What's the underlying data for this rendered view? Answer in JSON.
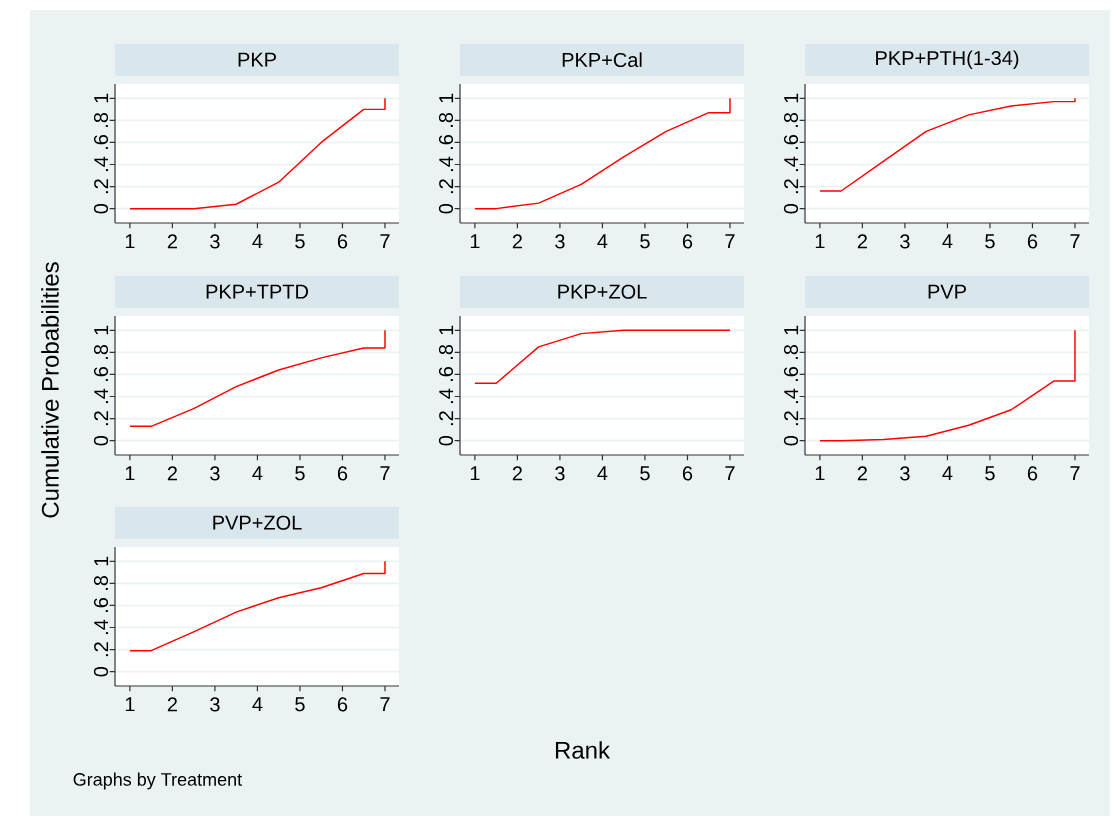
{
  "chart_data": [
    {
      "type": "line",
      "title": "PKP",
      "color": "#ff0000",
      "grid": "y",
      "xlim": [
        0.65,
        7.33
      ],
      "ylim": [
        -0.13,
        1.13
      ],
      "xticks": [
        1,
        2,
        3,
        4,
        5,
        6,
        7
      ],
      "yticks": [
        0,
        {
          "value": 0.2,
          "label": ".2"
        },
        {
          "value": 0.4,
          "label": ".4"
        },
        {
          "value": 0.6,
          "label": ".6"
        },
        {
          "value": 0.8,
          "label": ".8"
        },
        1
      ],
      "x": [
        1,
        1.5,
        2.5,
        3.5,
        4.5,
        5.5,
        6.5,
        7,
        7
      ],
      "values": [
        0,
        0,
        0,
        0.04,
        0.24,
        0.6,
        0.9,
        0.9,
        1
      ]
    },
    {
      "type": "line",
      "title": "PKP+Cal",
      "color": "#ff0000",
      "grid": "y",
      "xlim": [
        0.65,
        7.33
      ],
      "ylim": [
        -0.13,
        1.13
      ],
      "xticks": [
        1,
        2,
        3,
        4,
        5,
        6,
        7
      ],
      "yticks": [
        0,
        {
          "value": 0.2,
          "label": ".2"
        },
        {
          "value": 0.4,
          "label": ".4"
        },
        {
          "value": 0.6,
          "label": ".6"
        },
        {
          "value": 0.8,
          "label": ".8"
        },
        1
      ],
      "x": [
        1,
        1.5,
        2.5,
        3.5,
        4.5,
        5.5,
        6.5,
        7,
        7
      ],
      "values": [
        0,
        0,
        0.05,
        0.22,
        0.47,
        0.7,
        0.87,
        0.87,
        1
      ]
    },
    {
      "type": "line",
      "title": "PKP+PTH(1-34)",
      "color": "#ff0000",
      "grid": "y",
      "xlim": [
        0.65,
        7.33
      ],
      "ylim": [
        -0.13,
        1.13
      ],
      "xticks": [
        1,
        2,
        3,
        4,
        5,
        6,
        7
      ],
      "yticks": [
        0,
        {
          "value": 0.2,
          "label": ".2"
        },
        {
          "value": 0.4,
          "label": ".4"
        },
        {
          "value": 0.6,
          "label": ".6"
        },
        {
          "value": 0.8,
          "label": ".8"
        },
        1
      ],
      "x": [
        1,
        1.5,
        2.5,
        3.5,
        4.5,
        5.5,
        6.5,
        7,
        7
      ],
      "values": [
        0.16,
        0.16,
        0.43,
        0.7,
        0.85,
        0.93,
        0.97,
        0.97,
        1
      ]
    },
    {
      "type": "line",
      "title": "PKP+TPTD",
      "ylabel": "Cumulative Probabilities",
      "color": "#ff0000",
      "grid": "y",
      "xlim": [
        0.65,
        7.33
      ],
      "ylim": [
        -0.13,
        1.13
      ],
      "xticks": [
        1,
        2,
        3,
        4,
        5,
        6,
        7
      ],
      "yticks": [
        0,
        {
          "value": 0.2,
          "label": ".2"
        },
        {
          "value": 0.4,
          "label": ".4"
        },
        {
          "value": 0.6,
          "label": ".6"
        },
        {
          "value": 0.8,
          "label": ".8"
        },
        1
      ],
      "x": [
        1,
        1.5,
        2.5,
        3.5,
        4.5,
        5.5,
        6.5,
        7,
        7
      ],
      "values": [
        0.13,
        0.13,
        0.29,
        0.49,
        0.64,
        0.75,
        0.84,
        0.84,
        1
      ]
    },
    {
      "type": "line",
      "title": "PKP+ZOL",
      "xlabel": "Rank",
      "color": "#ff0000",
      "grid": "y",
      "xlim": [
        0.65,
        7.33
      ],
      "ylim": [
        -0.13,
        1.13
      ],
      "xticks": [
        1,
        2,
        3,
        4,
        5,
        6,
        7
      ],
      "yticks": [
        0,
        {
          "value": 0.2,
          "label": ".2"
        },
        {
          "value": 0.4,
          "label": ".4"
        },
        {
          "value": 0.6,
          "label": ".6"
        },
        {
          "value": 0.8,
          "label": ".8"
        },
        1
      ],
      "x": [
        1,
        1.5,
        2.5,
        3.5,
        4.5,
        5.5,
        6.5,
        7,
        7
      ],
      "values": [
        0.52,
        0.52,
        0.85,
        0.97,
        1,
        1,
        1,
        1,
        1
      ]
    },
    {
      "type": "line",
      "title": "PVP",
      "color": "#ff0000",
      "grid": "y",
      "xlim": [
        0.65,
        7.33
      ],
      "ylim": [
        -0.13,
        1.13
      ],
      "xticks": [
        1,
        2,
        3,
        4,
        5,
        6,
        7
      ],
      "yticks": [
        0,
        {
          "value": 0.2,
          "label": ".2"
        },
        {
          "value": 0.4,
          "label": ".4"
        },
        {
          "value": 0.6,
          "label": ".6"
        },
        {
          "value": 0.8,
          "label": ".8"
        },
        1
      ],
      "x": [
        1,
        1.5,
        2.5,
        3.5,
        4.5,
        5.5,
        6.5,
        7,
        7
      ],
      "values": [
        0,
        0,
        0.01,
        0.04,
        0.14,
        0.28,
        0.54,
        0.54,
        1
      ]
    },
    {
      "type": "line",
      "title": "PVP+ZOL",
      "annotations": [
        "Graphs by Treatment"
      ],
      "color": "#ff0000",
      "grid": "y",
      "xlim": [
        0.65,
        7.33
      ],
      "ylim": [
        -0.13,
        1.13
      ],
      "xticks": [
        1,
        2,
        3,
        4,
        5,
        6,
        7
      ],
      "yticks": [
        0,
        {
          "value": 0.2,
          "label": ".2"
        },
        {
          "value": 0.4,
          "label": ".4"
        },
        {
          "value": 0.6,
          "label": ".6"
        },
        {
          "value": 0.8,
          "label": ".8"
        },
        1
      ],
      "x": [
        1,
        1.5,
        2.5,
        3.5,
        4.5,
        5.5,
        6.5,
        7,
        7
      ],
      "values": [
        0.19,
        0.19,
        0.36,
        0.54,
        0.67,
        0.76,
        0.89,
        0.89,
        1
      ]
    }
  ]
}
